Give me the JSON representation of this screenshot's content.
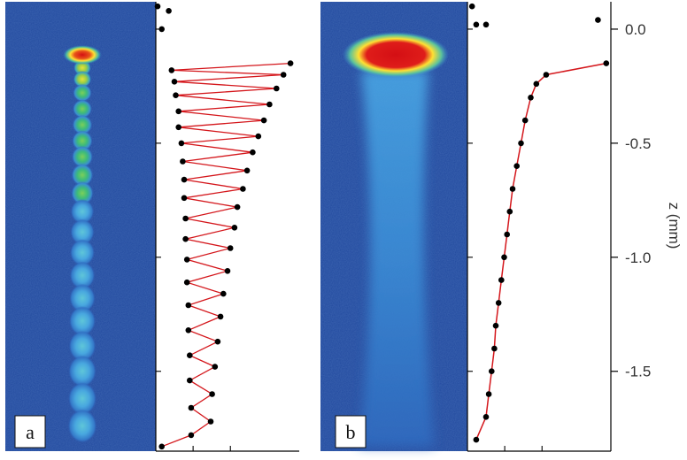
{
  "chart_data": {
    "type": "scatter",
    "ylabel": "z (mm)",
    "yticks": [
      0.0,
      -0.5,
      -1.0,
      -1.5
    ],
    "ytick_labels": [
      "0.0",
      "-0.5",
      "-1.0",
      "-1.5"
    ],
    "ylim": [
      -1.85,
      0.12
    ],
    "panels": [
      {
        "label": "a",
        "image": "absorption image: periodic chain of atom clouds below a bright dense cloud at top",
        "image_colors": [
          "#1b3f8f",
          "#4aa3e0",
          "#3dbb7a",
          "#ffe033",
          "#d40f14"
        ],
        "profile": {
          "marker_color": "#000000",
          "fit_color": "#d4161b",
          "fit_model": "damped oscillation",
          "z_mm": [
            0.1,
            0.08,
            0.0,
            -0.15,
            -0.18,
            -0.2,
            -0.23,
            -0.26,
            -0.29,
            -0.33,
            -0.36,
            -0.4,
            -0.43,
            -0.47,
            -0.5,
            -0.54,
            -0.58,
            -0.62,
            -0.66,
            -0.7,
            -0.74,
            -0.78,
            -0.83,
            -0.87,
            -0.92,
            -0.96,
            -1.01,
            -1.06,
            -1.11,
            -1.16,
            -1.21,
            -1.26,
            -1.32,
            -1.37,
            -1.43,
            -1.48,
            -1.54,
            -1.6,
            -1.66,
            -1.72,
            -1.78,
            -1.83
          ],
          "intensity_frac": [
            0.0,
            0.08,
            0.03,
            0.95,
            0.1,
            0.9,
            0.12,
            0.85,
            0.13,
            0.8,
            0.15,
            0.76,
            0.15,
            0.72,
            0.17,
            0.68,
            0.18,
            0.64,
            0.19,
            0.61,
            0.19,
            0.57,
            0.2,
            0.55,
            0.2,
            0.52,
            0.21,
            0.5,
            0.21,
            0.47,
            0.22,
            0.45,
            0.22,
            0.43,
            0.23,
            0.41,
            0.23,
            0.39,
            0.24,
            0.38,
            0.24,
            0.03
          ]
        }
      },
      {
        "label": "b",
        "image": "absorption image: dense red cloud at top with a continuous diffuse blue stream below",
        "image_colors": [
          "#1b3f8f",
          "#4aa3e0",
          "#ffe033",
          "#d40f14"
        ],
        "profile": {
          "marker_color": "#000000",
          "fit_color": "#d4161b",
          "fit_model": "smooth decay",
          "z_mm": [
            0.1,
            0.02,
            0.02,
            0.04,
            -0.15,
            -0.2,
            -0.24,
            -0.3,
            -0.4,
            -0.5,
            -0.6,
            -0.7,
            -0.8,
            -0.9,
            -1.0,
            -1.1,
            -1.2,
            -1.3,
            -1.4,
            -1.5,
            -1.6,
            -1.7,
            -1.8
          ],
          "intensity_frac": [
            0.02,
            0.05,
            0.12,
            0.92,
            0.98,
            0.55,
            0.48,
            0.44,
            0.4,
            0.37,
            0.34,
            0.31,
            0.29,
            0.27,
            0.25,
            0.23,
            0.21,
            0.19,
            0.18,
            0.16,
            0.14,
            0.12,
            0.05
          ]
        }
      }
    ]
  }
}
